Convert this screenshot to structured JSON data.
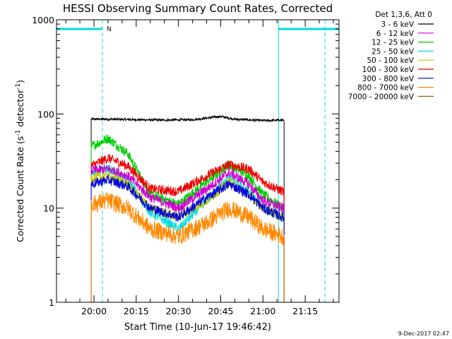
{
  "chart_data": {
    "type": "line",
    "title": "HESSI Observing Summary Count Rates, Corrected",
    "ylabel_parts": {
      "pre": "Corrected Count Rate (s",
      "sup1": "-1",
      "mid": " detector",
      "sup2": "-1",
      "post": ")"
    },
    "xlabel": "Start Time (10-Jun-17 19:46:42)",
    "date_stamp": "9-Dec-2017 02:47",
    "yscale": "log",
    "ylim": [
      1,
      1000
    ],
    "xlim": [
      "19:46:42",
      "21:27:00"
    ],
    "y_ticks": [
      "1",
      "10",
      "100",
      "1000"
    ],
    "x_ticks": [
      {
        "t": "20:00",
        "label": "20:00"
      },
      {
        "t": "20:15",
        "label": "20:15"
      },
      {
        "t": "20:30",
        "label": "20:30"
      },
      {
        "t": "20:45",
        "label": "20:45"
      },
      {
        "t": "21:00",
        "label": "21:00"
      },
      {
        "t": "21:15",
        "label": "21:15"
      }
    ],
    "legend_header": "Det 1,3,6, Att 0",
    "data_start": "19:59:00",
    "data_end": "21:07:30",
    "series": [
      {
        "name": "3 - 6 keV",
        "color": "#000000",
        "x": [
          "19:59",
          "20:05",
          "20:15",
          "20:25",
          "20:35",
          "20:45",
          "20:50",
          "21:00",
          "21:07"
        ],
        "values": [
          88,
          88,
          87,
          86,
          87,
          94,
          88,
          85,
          86
        ]
      },
      {
        "name": "6 - 12 keV",
        "color": "#cc00cc",
        "x": [
          "19:59",
          "20:05",
          "20:12",
          "20:20",
          "20:30",
          "20:40",
          "20:48",
          "20:55",
          "21:00",
          "21:07"
        ],
        "values": [
          25,
          26,
          22,
          13,
          10,
          16,
          24,
          18,
          12,
          10
        ]
      },
      {
        "name": "12 - 25 keV",
        "color": "#00cc00",
        "x": [
          "19:59",
          "20:05",
          "20:12",
          "20:20",
          "20:30",
          "20:40",
          "20:48",
          "20:55",
          "21:00",
          "21:07"
        ],
        "values": [
          45,
          55,
          38,
          14,
          11,
          19,
          29,
          22,
          14,
          10
        ]
      },
      {
        "name": "25 - 50 keV",
        "color": "#00dddd",
        "x": [
          "19:59",
          "20:05",
          "20:12",
          "20:20",
          "20:30",
          "20:40",
          "20:48",
          "20:55",
          "21:00",
          "21:07"
        ],
        "values": [
          24,
          26,
          20,
          9,
          6,
          12,
          21,
          15,
          10,
          8
        ]
      },
      {
        "name": "50 - 100 keV",
        "color": "#cccc00",
        "x": [
          "19:59",
          "20:05",
          "20:12",
          "20:20",
          "20:30",
          "20:40",
          "20:48",
          "20:55",
          "21:00",
          "21:07"
        ],
        "values": [
          21,
          22,
          18,
          10,
          8,
          12,
          19,
          14,
          10,
          8
        ]
      },
      {
        "name": "100 - 300 keV",
        "color": "#ee0000",
        "x": [
          "19:59",
          "20:05",
          "20:12",
          "20:20",
          "20:30",
          "20:40",
          "20:48",
          "20:55",
          "21:00",
          "21:07"
        ],
        "values": [
          28,
          34,
          28,
          16,
          15,
          22,
          29,
          26,
          19,
          15
        ]
      },
      {
        "name": "300 - 800 keV",
        "color": "#0000dd",
        "x": [
          "19:59",
          "20:05",
          "20:12",
          "20:20",
          "20:30",
          "20:40",
          "20:48",
          "20:55",
          "21:00",
          "21:07"
        ],
        "values": [
          18,
          20,
          17,
          10,
          8,
          13,
          18,
          14,
          10,
          8
        ]
      },
      {
        "name": "800 - 7000 keV",
        "color": "#ff8800",
        "x": [
          "19:59",
          "20:05",
          "20:12",
          "20:20",
          "20:30",
          "20:40",
          "20:48",
          "20:55",
          "21:00",
          "21:07"
        ],
        "values": [
          11,
          12,
          10,
          6,
          5,
          7,
          10,
          8,
          6,
          5
        ]
      },
      {
        "name": "7000 - 20000 keV",
        "color": "#996600",
        "x": [],
        "values": []
      }
    ],
    "annotations": {
      "saa_flag_label": "N",
      "saa_flag_color": "#00dddd",
      "saa_bars": [
        {
          "start": "19:46:42",
          "end": "20:03:00"
        },
        {
          "start": "21:05:30",
          "end": "21:27:00"
        }
      ],
      "night_lines_solid": [
        "19:46:42",
        "21:05:30"
      ],
      "night_lines_dashed": [
        "20:03:00",
        "21:22:00"
      ]
    }
  }
}
